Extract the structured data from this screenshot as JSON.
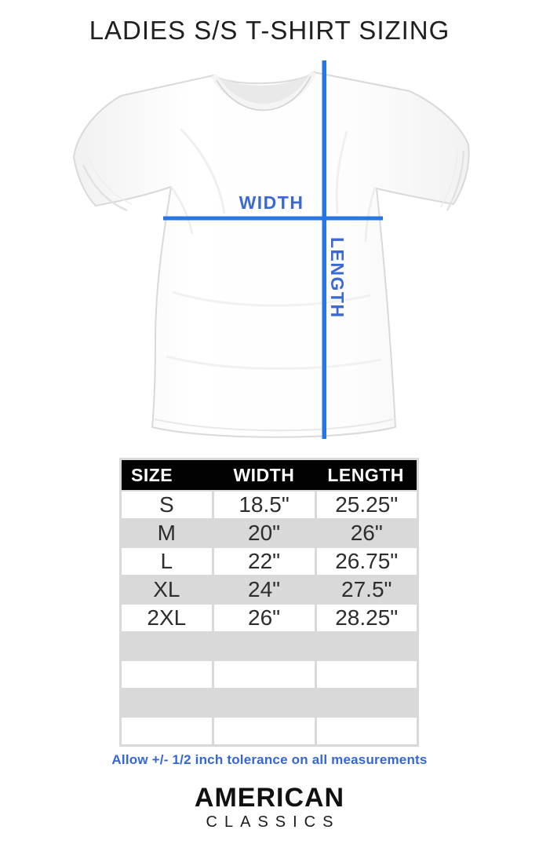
{
  "page": {
    "title": "LADIES S/S T-SHIRT SIZING"
  },
  "diagram": {
    "width_label": "WIDTH",
    "length_label": "LENGTH",
    "line_color": "#2577e6",
    "label_color": "#3c69d1"
  },
  "size_table": {
    "headers": [
      "SIZE",
      "WIDTH",
      "LENGTH"
    ],
    "header_bg": "#020202",
    "header_text_color": "#ffffff",
    "stripe_color": "#d9d9d9",
    "rows": [
      {
        "size": "S",
        "width": "18.5\"",
        "length": "25.25\""
      },
      {
        "size": "M",
        "width": "20\"",
        "length": "26\""
      },
      {
        "size": "L",
        "width": "22\"",
        "length": "26.75\""
      },
      {
        "size": "XL",
        "width": "24\"",
        "length": "27.5\""
      },
      {
        "size": "2XL",
        "width": "26\"",
        "length": "28.25\""
      }
    ],
    "empty_rows": 4
  },
  "tolerance_note": "Allow +/- 1/2 inch tolerance on all measurements",
  "brand": {
    "line1": "AMERICAN",
    "line2": "CLASSICS"
  },
  "chart_data": {
    "type": "table",
    "title": "LADIES S/S T-SHIRT SIZING",
    "columns": [
      "SIZE",
      "WIDTH",
      "LENGTH"
    ],
    "rows": [
      [
        "S",
        "18.5\"",
        "25.25\""
      ],
      [
        "M",
        "20\"",
        "26\""
      ],
      [
        "L",
        "22\"",
        "26.75\""
      ],
      [
        "XL",
        "24\"",
        "27.5\""
      ],
      [
        "2XL",
        "26\"",
        "28.25\""
      ]
    ],
    "note": "Allow +/- 1/2 inch tolerance on all measurements",
    "measurement_axes": [
      "WIDTH",
      "LENGTH"
    ]
  }
}
